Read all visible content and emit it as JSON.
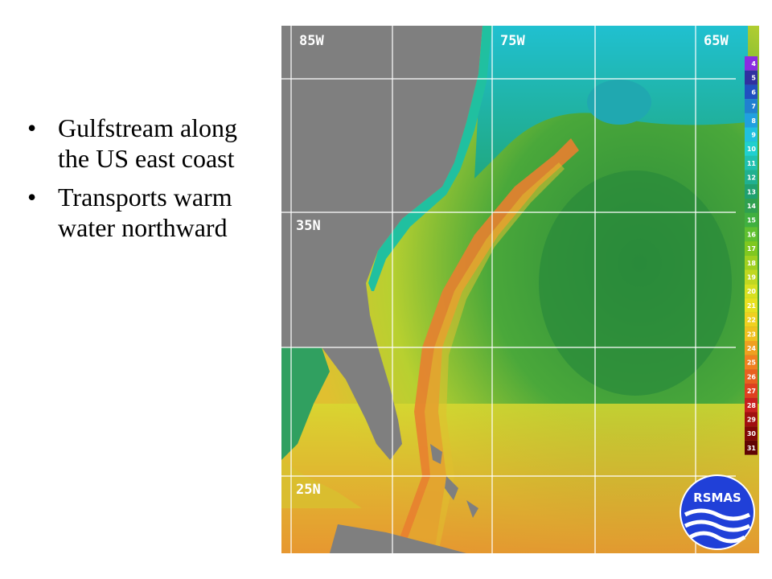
{
  "bullets": [
    "Gulfstream along the US east coast",
    "Transports warm water northward"
  ],
  "map": {
    "longitude_labels": [
      "85W",
      "75W",
      "65W"
    ],
    "latitude_labels": [
      "35N",
      "25N"
    ],
    "scale_values": [
      "4",
      "5",
      "6",
      "7",
      "8",
      "9",
      "10",
      "11",
      "12",
      "13",
      "14",
      "15",
      "16",
      "17",
      "18",
      "19",
      "20",
      "21",
      "22",
      "23",
      "24",
      "25",
      "26",
      "27",
      "28",
      "29",
      "30",
      "31"
    ],
    "scale_colors": [
      "#8a2be2",
      "#3030a0",
      "#2050c0",
      "#2080d0",
      "#20a0e0",
      "#20c0e0",
      "#20d0d0",
      "#20c0b0",
      "#20b090",
      "#20a070",
      "#30a050",
      "#40b040",
      "#60c030",
      "#80c820",
      "#a0d020",
      "#c0d820",
      "#d8e020",
      "#e8e020",
      "#f0d020",
      "#f0c020",
      "#f0a020",
      "#f08020",
      "#e86020",
      "#e04020",
      "#c82020",
      "#a01010",
      "#800808",
      "#600404"
    ],
    "logo_text": "RSMAS",
    "colors": {
      "land": "#7f7f7f",
      "cold": "#20c0c0",
      "mid": "#3a9a3a",
      "warm": "#d8d820",
      "hot": "#e87830"
    }
  }
}
